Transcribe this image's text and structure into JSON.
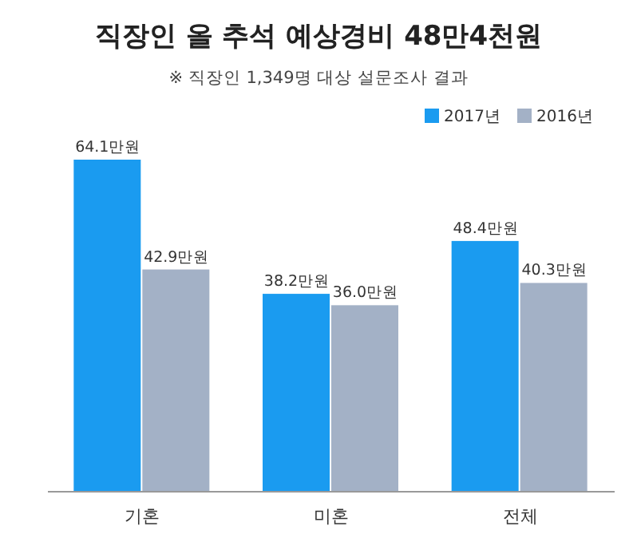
{
  "chart_data": {
    "type": "bar",
    "title": "직장인 올 추석 예상경비 48만4천원",
    "subtitle": "※ 직장인 1,349명 대상 설문조사 결과",
    "categories": [
      "기혼",
      "미혼",
      "전체"
    ],
    "series": [
      {
        "name": "2017년",
        "color": "#1a9bf0",
        "values": [
          64.1,
          38.2,
          48.4
        ],
        "value_labels": [
          "64.1만원",
          "38.2만원",
          "48.4만원"
        ]
      },
      {
        "name": "2016년",
        "color": "#a3b1c6",
        "values": [
          42.9,
          36.0,
          40.3
        ],
        "value_labels": [
          "42.9만원",
          "36.0만원",
          "40.3만원"
        ]
      }
    ],
    "legend": "top right"
  }
}
